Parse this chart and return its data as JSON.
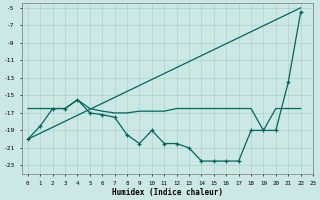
{
  "xlabel": "Humidex (Indice chaleur)",
  "bg_color": "#cce8e4",
  "grid_color": "#aad4cc",
  "line_color": "#006660",
  "xlim": [
    -0.5,
    23
  ],
  "ylim": [
    -24,
    -4.5
  ],
  "yticks": [
    -5,
    -7,
    -9,
    -11,
    -13,
    -15,
    -17,
    -19,
    -21,
    -23
  ],
  "xticks": [
    0,
    1,
    2,
    3,
    4,
    5,
    6,
    7,
    8,
    9,
    10,
    11,
    12,
    13,
    14,
    15,
    16,
    17,
    18,
    19,
    20,
    21,
    22,
    23
  ],
  "line1_x": [
    0,
    22
  ],
  "line1_y": [
    -20,
    -5
  ],
  "line2_x": [
    0,
    1,
    2,
    3,
    4,
    5,
    6,
    7,
    8,
    9,
    10,
    11,
    12,
    13,
    14,
    15,
    16,
    17,
    18,
    19,
    20,
    21,
    22
  ],
  "line2_y": [
    -16.5,
    -16.5,
    -16.5,
    -16.5,
    -15.5,
    -16.5,
    -16.8,
    -17.0,
    -17.0,
    -16.8,
    -16.8,
    -16.8,
    -16.5,
    -16.5,
    -16.5,
    -16.5,
    -16.5,
    -16.5,
    -16.5,
    -19,
    -16.5,
    -16.5,
    -16.5
  ],
  "line3_x": [
    0,
    1,
    2,
    3,
    4,
    5,
    6,
    7,
    8,
    9,
    10,
    11,
    12,
    13,
    14,
    15,
    16,
    17,
    18,
    19,
    20,
    21,
    22
  ],
  "line3_y": [
    -20,
    -18.5,
    -16.5,
    -16.5,
    -15.5,
    -17.0,
    -17.2,
    -17.5,
    -19.5,
    -20.5,
    -19.0,
    -20.5,
    -20.5,
    -21.0,
    -22.5,
    -22.5,
    -22.5,
    -22.5,
    -19.0,
    -19.0,
    -19.0,
    -13.5,
    -5.5
  ]
}
